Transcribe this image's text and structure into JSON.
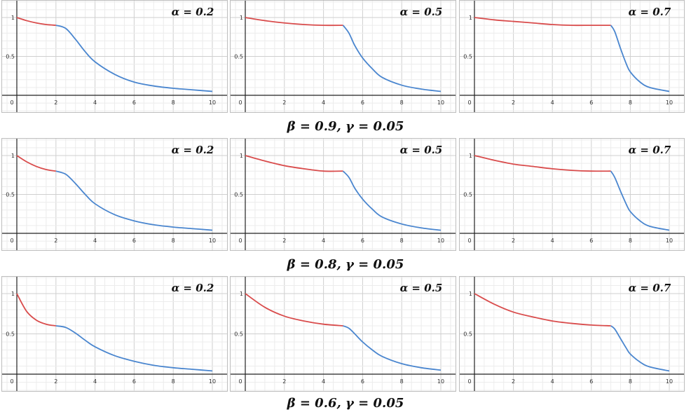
{
  "colors": {
    "phase1": "#d94c4c",
    "phase2": "#4a86cf",
    "grid_minor": "#ececec",
    "grid_major": "#cfcfcf",
    "axis": "#222222",
    "border": "#bdbdbd"
  },
  "rows": [
    {
      "caption": "β = 0.9, γ = 0.05"
    },
    {
      "caption": "β = 0.8, γ = 0.05"
    },
    {
      "caption": "β = 0.6, γ = 0.05"
    }
  ],
  "chart_data": [
    {
      "type": "line",
      "title": "α = 0.2",
      "xlim": [
        0,
        10
      ],
      "ylim": [
        0,
        1
      ],
      "x_ticks": [
        "0",
        "2",
        "4",
        "6",
        "8",
        "10"
      ],
      "y_ticks": [
        "0.5",
        "1"
      ],
      "grid": true,
      "series": [
        {
          "x": [
            0,
            0.5,
            1,
            1.5,
            2
          ],
          "y": [
            1,
            0.96,
            0.93,
            0.91,
            0.9
          ]
        },
        {
          "x": [
            2,
            2.5,
            3,
            3.5,
            4,
            5,
            6,
            7,
            8,
            9,
            10
          ],
          "y": [
            0.9,
            0.86,
            0.72,
            0.56,
            0.43,
            0.27,
            0.17,
            0.12,
            0.09,
            0.07,
            0.05
          ]
        }
      ]
    },
    {
      "type": "line",
      "title": "α = 0.5",
      "xlim": [
        0,
        10
      ],
      "ylim": [
        0,
        1
      ],
      "x_ticks": [
        "0",
        "2",
        "4",
        "6",
        "8",
        "10"
      ],
      "y_ticks": [
        "0.5",
        "1"
      ],
      "grid": true,
      "series": [
        {
          "x": [
            0,
            1,
            2,
            3,
            4,
            5
          ],
          "y": [
            1,
            0.96,
            0.93,
            0.91,
            0.9,
            0.9
          ]
        },
        {
          "x": [
            5,
            5.3,
            5.6,
            6,
            6.5,
            7,
            8,
            9,
            10
          ],
          "y": [
            0.9,
            0.8,
            0.64,
            0.48,
            0.34,
            0.23,
            0.13,
            0.08,
            0.05
          ]
        }
      ]
    },
    {
      "type": "line",
      "title": "α = 0.7",
      "xlim": [
        0,
        10
      ],
      "ylim": [
        0,
        1
      ],
      "x_ticks": [
        "0",
        "2",
        "4",
        "6",
        "8",
        "10"
      ],
      "y_ticks": [
        "0.5",
        "1"
      ],
      "grid": true,
      "series": [
        {
          "x": [
            0,
            1,
            2,
            3,
            4,
            5,
            6,
            7
          ],
          "y": [
            1,
            0.97,
            0.95,
            0.93,
            0.91,
            0.9,
            0.9,
            0.9
          ]
        },
        {
          "x": [
            7,
            7.2,
            7.5,
            7.8,
            8,
            8.5,
            9,
            10
          ],
          "y": [
            0.9,
            0.82,
            0.6,
            0.4,
            0.3,
            0.17,
            0.1,
            0.05
          ]
        }
      ]
    },
    {
      "type": "line",
      "title": "α = 0.2",
      "xlim": [
        0,
        10
      ],
      "ylim": [
        0,
        1
      ],
      "x_ticks": [
        "0",
        "2",
        "4",
        "6",
        "8",
        "10"
      ],
      "y_ticks": [
        "0.5",
        "1"
      ],
      "grid": true,
      "series": [
        {
          "x": [
            0,
            0.5,
            1,
            1.5,
            2
          ],
          "y": [
            1,
            0.92,
            0.86,
            0.82,
            0.8
          ]
        },
        {
          "x": [
            2,
            2.5,
            3,
            3.5,
            4,
            5,
            6,
            7,
            8,
            9,
            10
          ],
          "y": [
            0.8,
            0.76,
            0.64,
            0.5,
            0.38,
            0.24,
            0.16,
            0.11,
            0.08,
            0.06,
            0.04
          ]
        }
      ]
    },
    {
      "type": "line",
      "title": "α = 0.5",
      "xlim": [
        0,
        10
      ],
      "ylim": [
        0,
        1
      ],
      "x_ticks": [
        "0",
        "2",
        "4",
        "6",
        "8",
        "10"
      ],
      "y_ticks": [
        "0.5",
        "1"
      ],
      "grid": true,
      "series": [
        {
          "x": [
            0,
            1,
            2,
            3,
            4,
            5
          ],
          "y": [
            1,
            0.93,
            0.87,
            0.83,
            0.8,
            0.8
          ]
        },
        {
          "x": [
            5,
            5.3,
            5.6,
            6,
            6.5,
            7,
            8,
            9,
            10
          ],
          "y": [
            0.8,
            0.72,
            0.58,
            0.44,
            0.31,
            0.21,
            0.12,
            0.07,
            0.04
          ]
        }
      ]
    },
    {
      "type": "line",
      "title": "α = 0.7",
      "xlim": [
        0,
        10
      ],
      "ylim": [
        0,
        1
      ],
      "x_ticks": [
        "0",
        "2",
        "4",
        "6",
        "8",
        "10"
      ],
      "y_ticks": [
        "0.5",
        "1"
      ],
      "grid": true,
      "series": [
        {
          "x": [
            0,
            1,
            2,
            3,
            4,
            5,
            6,
            7
          ],
          "y": [
            1,
            0.94,
            0.89,
            0.86,
            0.83,
            0.81,
            0.8,
            0.8
          ]
        },
        {
          "x": [
            7,
            7.2,
            7.5,
            7.8,
            8,
            8.5,
            9,
            10
          ],
          "y": [
            0.8,
            0.72,
            0.54,
            0.37,
            0.28,
            0.16,
            0.09,
            0.04
          ]
        }
      ]
    },
    {
      "type": "line",
      "title": "α = 0.2",
      "xlim": [
        0,
        10
      ],
      "ylim": [
        0,
        1
      ],
      "x_ticks": [
        "0",
        "2",
        "4",
        "6",
        "8",
        "10"
      ],
      "y_ticks": [
        "0.5",
        "1"
      ],
      "grid": true,
      "series": [
        {
          "x": [
            0,
            0.5,
            1,
            1.5,
            2
          ],
          "y": [
            1,
            0.78,
            0.67,
            0.62,
            0.6
          ]
        },
        {
          "x": [
            2,
            2.5,
            3,
            3.5,
            4,
            5,
            6,
            7,
            8,
            9,
            10
          ],
          "y": [
            0.6,
            0.58,
            0.51,
            0.42,
            0.34,
            0.23,
            0.16,
            0.11,
            0.08,
            0.06,
            0.04
          ]
        }
      ]
    },
    {
      "type": "line",
      "title": "α = 0.5",
      "xlim": [
        0,
        10
      ],
      "ylim": [
        0,
        1
      ],
      "x_ticks": [
        "0",
        "2",
        "4",
        "6",
        "8",
        "10"
      ],
      "y_ticks": [
        "0.5",
        "1"
      ],
      "grid": true,
      "series": [
        {
          "x": [
            0,
            1,
            2,
            3,
            4,
            5
          ],
          "y": [
            1,
            0.83,
            0.72,
            0.66,
            0.62,
            0.6
          ]
        },
        {
          "x": [
            5,
            5.3,
            5.6,
            6,
            6.5,
            7,
            8,
            9,
            10
          ],
          "y": [
            0.6,
            0.57,
            0.5,
            0.4,
            0.3,
            0.22,
            0.13,
            0.08,
            0.05
          ]
        }
      ]
    },
    {
      "type": "line",
      "title": "α = 0.7",
      "xlim": [
        0,
        10
      ],
      "ylim": [
        0,
        1
      ],
      "x_ticks": [
        "0",
        "2",
        "4",
        "6",
        "8",
        "10"
      ],
      "y_ticks": [
        "0.5",
        "1"
      ],
      "grid": true,
      "series": [
        {
          "x": [
            0,
            1,
            2,
            3,
            4,
            5,
            6,
            7
          ],
          "y": [
            1,
            0.87,
            0.77,
            0.71,
            0.66,
            0.63,
            0.61,
            0.6
          ]
        },
        {
          "x": [
            7,
            7.2,
            7.5,
            7.8,
            8,
            8.5,
            9,
            10
          ],
          "y": [
            0.6,
            0.56,
            0.44,
            0.32,
            0.25,
            0.15,
            0.09,
            0.04
          ]
        }
      ]
    }
  ]
}
